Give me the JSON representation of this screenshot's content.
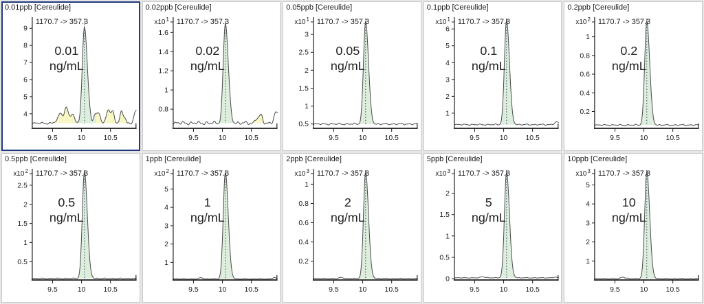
{
  "app": {
    "name": "quantitation-calibration-view"
  },
  "colors": {
    "background": "#e6e6e6",
    "panel_bg": "#ffffff",
    "panel_border": "#c9c9c9",
    "selected_border": "#1e3a7d",
    "axis": "#1a1a1a",
    "text": "#1a1a1a",
    "trace": "#4a4a4a",
    "peak_fill": "#ddeedd",
    "noise_fill": "#f8f8c6",
    "marker": "#2f4370"
  },
  "chart_data": {
    "type": "line",
    "layout": {
      "rows": 2,
      "cols": 5,
      "grid": false,
      "legend": "none"
    },
    "compound": "Cereulide",
    "scale_prefix": "x10",
    "x": {
      "range": [
        9.15,
        10.95
      ],
      "ticks": [
        9.5,
        10,
        10.5
      ],
      "retention_time": 10.05
    },
    "peak_sigma_left": 0.036,
    "peak_sigma_right": 0.05,
    "panels": [
      {
        "id": "0.01ppb",
        "title": "0.01ppb [Cereulide]",
        "transition": "1170.7 -> 357.3",
        "conc": "0.01",
        "unit": "ng/mL",
        "exp": null,
        "ymin": 3.15,
        "ymax": 9.65,
        "yticks": [
          4,
          5,
          6,
          7,
          8,
          9
        ],
        "base": 3.45,
        "apex": 9.1,
        "noise": 0.07,
        "yellow": [
          [
            9.48,
            9.98,
            0.88
          ],
          [
            10.17,
            10.37,
            0.9
          ],
          [
            10.37,
            10.62,
            1.05
          ],
          [
            10.62,
            10.8,
            0.8
          ]
        ],
        "bumps": [
          [
            10.85,
            11.15,
            1.3
          ]
        ],
        "selected": true
      },
      {
        "id": "0.02ppb",
        "title": "0.02ppb [Cereulide]",
        "transition": "1170.7 -> 357.3",
        "conc": "0.02",
        "unit": "ng/mL",
        "exp": 1,
        "ymin": 0.6,
        "ymax": 1.76,
        "yticks": [
          0.8,
          1,
          1.2,
          1.4,
          1.6
        ],
        "base": 0.655,
        "apex": 1.7,
        "noise": 0.022,
        "yellow": [
          [
            10.52,
            10.75,
            0.095
          ]
        ],
        "bumps": [
          [
            10.82,
            11.1,
            0.13
          ]
        ],
        "selected": false
      },
      {
        "id": "0.05ppb",
        "title": "0.05ppb [Cereulide]",
        "transition": "1170.7 -> 357.3",
        "conc": "0.05",
        "unit": "ng/mL",
        "exp": 1,
        "ymin": 0.38,
        "ymax": 3.48,
        "yticks": [
          0.5,
          1,
          1.5,
          2,
          2.5,
          3
        ],
        "base": 0.5,
        "apex": 3.37,
        "noise": 0.03,
        "yellow": [],
        "bumps": [],
        "selected": false
      },
      {
        "id": "0.1ppb",
        "title": "0.1ppb [Cereulide]",
        "transition": "1170.7 -> 357.3",
        "conc": "0.1",
        "unit": "ng/mL",
        "exp": 1,
        "ymin": 0.1,
        "ymax": 6.7,
        "yticks": [
          1,
          2,
          3,
          4,
          5,
          6
        ],
        "base": 0.32,
        "apex": 6.55,
        "noise": 0.045,
        "yellow": [],
        "bumps": [
          [
            10.8,
            11.05,
            0.15
          ]
        ],
        "selected": false
      },
      {
        "id": "0.2ppb",
        "title": "0.2ppb [Cereulide]",
        "transition": "1170.7 -> 357.3",
        "conc": "0.2",
        "unit": "ng/mL",
        "exp": 2,
        "ymin": 0.02,
        "ymax": 1.21,
        "yticks": [
          0.2,
          0.4,
          0.6,
          0.8,
          1
        ],
        "base": 0.055,
        "apex": 1.17,
        "noise": 0.009,
        "yellow": [],
        "bumps": [],
        "selected": false
      },
      {
        "id": "0.5ppb",
        "title": "0.5ppb [Cereulide]",
        "transition": "1170.7 -> 357.3",
        "conc": "0.5",
        "unit": "ng/mL",
        "exp": 2,
        "ymin": 0.02,
        "ymax": 2.93,
        "yticks": [
          0.5,
          1,
          1.5,
          2,
          2.5
        ],
        "base": 0.06,
        "apex": 2.86,
        "noise": 0.013,
        "yellow": [],
        "bumps": [],
        "selected": false
      },
      {
        "id": "1ppb",
        "title": "1ppb [Cereulide]",
        "transition": "1170.7 -> 357.3",
        "conc": "1",
        "unit": "ng/mL",
        "exp": 2,
        "ymin": 0.04,
        "ymax": 6.1,
        "yticks": [
          1,
          2,
          3,
          4,
          5
        ],
        "base": 0.1,
        "apex": 5.92,
        "noise": 0.02,
        "yellow": [],
        "bumps": [
          [
            9.55,
            9.72,
            0.07
          ],
          [
            10.8,
            10.97,
            0.07
          ]
        ],
        "selected": false
      },
      {
        "id": "2ppb",
        "title": "2ppb [Cereulide]",
        "transition": "1170.7 -> 357.3",
        "conc": "2",
        "unit": "ng/mL",
        "exp": 3,
        "ymin": 0.005,
        "ymax": 1.16,
        "yticks": [
          0.2,
          0.4,
          0.6,
          0.8,
          1
        ],
        "base": 0.02,
        "apex": 1.13,
        "noise": 0.004,
        "yellow": [],
        "bumps": [
          [
            9.55,
            9.72,
            0.012
          ]
        ],
        "selected": false
      },
      {
        "id": "5ppb",
        "title": "5ppb [Cereulide]",
        "transition": "1170.7 -> 357.3",
        "conc": "5",
        "unit": "ng/mL",
        "exp": 3,
        "ymin": -0.03,
        "ymax": 2.57,
        "yticks": [
          0,
          0.5,
          1,
          1.5,
          2
        ],
        "base": 0.02,
        "apex": 2.5,
        "noise": 0.008,
        "yellow": [],
        "bumps": [
          [
            9.55,
            9.75,
            0.03
          ],
          [
            10.8,
            10.95,
            0.02
          ]
        ],
        "selected": false
      },
      {
        "id": "10ppb",
        "title": "10ppb [Cereulide]",
        "transition": "1170.7 -> 357.3",
        "conc": "10",
        "unit": "ng/mL",
        "exp": 3,
        "ymin": 0,
        "ymax": 5.85,
        "yticks": [
          1,
          2,
          3,
          4,
          5
        ],
        "base": 0.07,
        "apex": 5.72,
        "noise": 0.02,
        "yellow": [],
        "bumps": [
          [
            9.55,
            9.75,
            0.09
          ]
        ],
        "selected": false
      }
    ]
  }
}
